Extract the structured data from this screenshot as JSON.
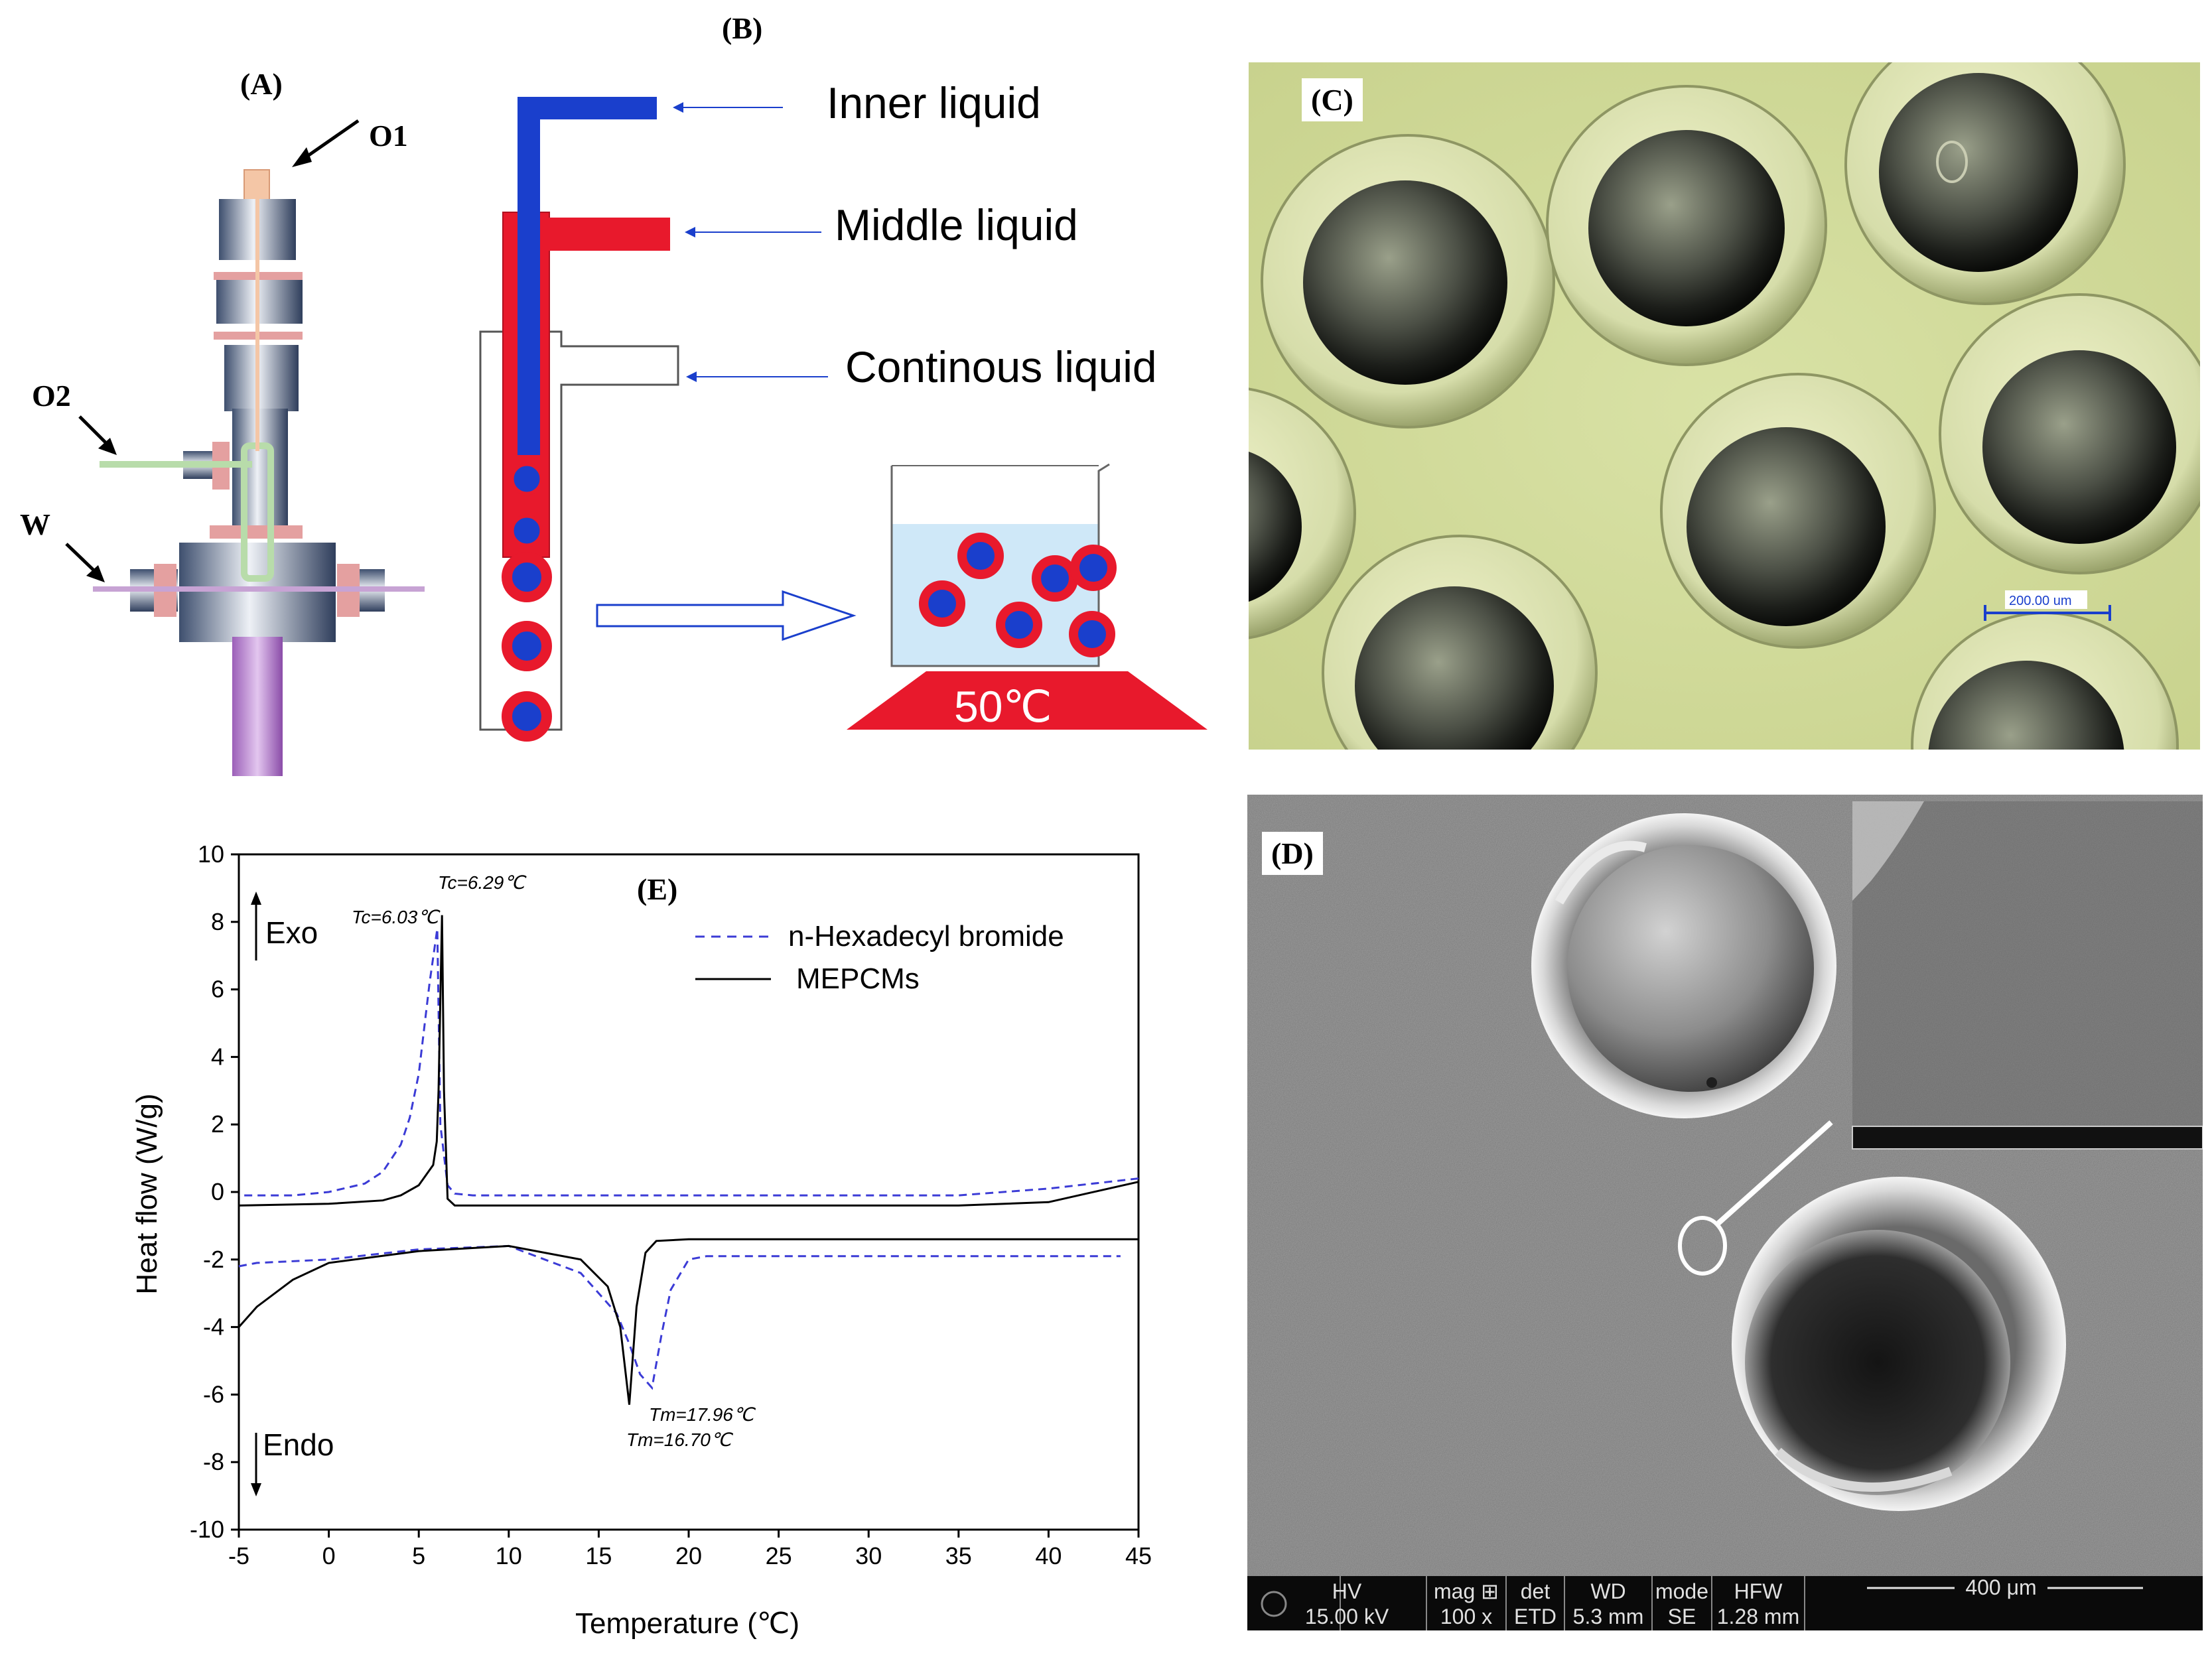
{
  "figure": {
    "panel_a": {
      "label": "(A)",
      "ports": {
        "o1": "O1",
        "o2": "O2",
        "w": "W"
      }
    },
    "panel_b": {
      "label": "(B)",
      "inner_liquid": "Inner liquid",
      "middle_liquid": "Middle liquid",
      "continuous_liquid": "Continous liquid",
      "temperature": "50℃"
    },
    "panel_c": {
      "label": "(C)",
      "scale_bar": "200.00 um"
    },
    "panel_d": {
      "label": "(D)",
      "info_bar": {
        "headers": [
          "HV",
          "mag ⊞",
          "det",
          "WD",
          "mode",
          "HFW"
        ],
        "values": [
          "15.00 kV",
          "100 x",
          "ETD",
          "5.3 mm",
          "SE",
          "1.28 mm"
        ],
        "scale": "400 μm"
      }
    },
    "panel_e": {
      "label": "(E)",
      "exo": "Exo",
      "endo": "Endo",
      "annotations": {
        "tc_pcm": "Tc=6.03℃",
        "tc_mepcm": "Tc=6.29℃",
        "tm_pcm": "Tm=17.96℃",
        "tm_mepcm": "Tm=16.70℃"
      }
    },
    "colors": {
      "inner": "#1a3fcc",
      "middle": "#e8192c",
      "dash_series": "#3b3bd6",
      "solid_series": "#000000"
    }
  },
  "chart_data": {
    "type": "line",
    "xlabel": "Temperature (℃)",
    "ylabel": "Heat flow (W/g)",
    "xlim": [
      -5,
      45
    ],
    "ylim": [
      -10,
      10
    ],
    "xticks": [
      -5,
      0,
      5,
      10,
      15,
      20,
      25,
      30,
      35,
      40,
      45
    ],
    "yticks": [
      -10,
      -8,
      -6,
      -4,
      -2,
      0,
      2,
      4,
      6,
      8,
      10
    ],
    "legend_position": "top-right",
    "series": [
      {
        "name": "n-Hexadecyl bromide",
        "style": "dashed",
        "cooling": {
          "x": [
            45,
            40,
            35,
            30,
            25,
            20,
            15,
            10,
            8,
            7,
            6.6,
            6.2,
            6.03,
            5.6,
            5,
            4.5,
            4,
            3,
            2,
            0,
            -2,
            -4,
            -5
          ],
          "y": [
            0.4,
            0.1,
            -0.1,
            -0.1,
            -0.1,
            -0.1,
            -0.1,
            -0.1,
            -0.1,
            -0.05,
            0.2,
            2.0,
            7.8,
            6.2,
            3.5,
            2.2,
            1.4,
            0.6,
            0.25,
            0.0,
            -0.1,
            -0.1,
            -0.1
          ]
        },
        "heating": {
          "x": [
            -5,
            -4,
            0,
            5,
            10,
            14,
            16,
            16.7,
            17.3,
            17.96,
            18.5,
            19,
            20,
            21,
            25,
            30,
            35,
            40,
            44
          ],
          "y": [
            -2.2,
            -2.1,
            -2.0,
            -1.7,
            -1.6,
            -2.4,
            -3.6,
            -4.5,
            -5.4,
            -5.8,
            -4.2,
            -2.9,
            -2.0,
            -1.9,
            -1.9,
            -1.9,
            -1.9,
            -1.9,
            -1.9
          ]
        }
      },
      {
        "name": "MEPCMs",
        "style": "solid",
        "cooling": {
          "x": [
            45,
            40,
            35,
            30,
            25,
            20,
            15,
            10,
            7,
            6.6,
            6.4,
            6.29,
            6.1,
            6.0,
            5.8,
            5,
            4,
            3,
            0,
            -5
          ],
          "y": [
            0.3,
            -0.3,
            -0.4,
            -0.4,
            -0.4,
            -0.4,
            -0.4,
            -0.4,
            -0.4,
            -0.2,
            3.0,
            8.2,
            3.0,
            1.5,
            0.8,
            0.2,
            -0.1,
            -0.25,
            -0.35,
            -0.4
          ]
        },
        "heating": {
          "x": [
            -5,
            -4,
            -2,
            0,
            5,
            10,
            14,
            15.5,
            16.2,
            16.7,
            17.1,
            17.6,
            18.2,
            20,
            30,
            40,
            45
          ],
          "y": [
            -4.0,
            -3.4,
            -2.6,
            -2.1,
            -1.75,
            -1.6,
            -2.0,
            -2.8,
            -4.0,
            -6.3,
            -3.4,
            -1.8,
            -1.45,
            -1.4,
            -1.4,
            -1.4,
            -1.4
          ]
        }
      }
    ]
  }
}
